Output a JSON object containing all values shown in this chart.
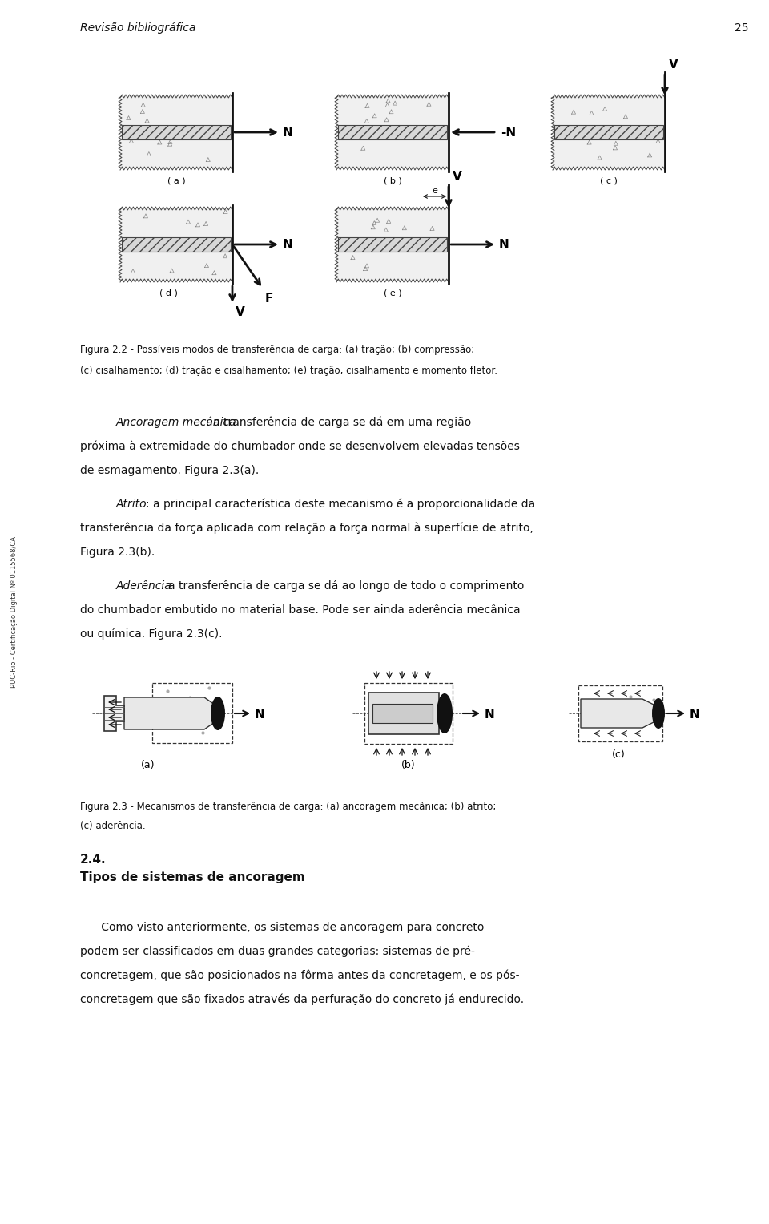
{
  "page_width": 9.6,
  "page_height": 15.27,
  "bg_color": "#ffffff",
  "header_text": "Revisão bibliográfica",
  "header_page": "25",
  "sidebar_text": "PUC-Rio - Certificação Digital Nº 0115568/CA",
  "fig22_caption_line1": "Figura 2.2 - Possíveis modos de transferência de carga: (a) tração; (b) compressão;",
  "fig22_caption_line2": "(c) cisalhamento; (d) tração e cisalhamento; (e) tração, cisalhamento e momento fletor.",
  "para1_italic": "Ancoragem mecânica",
  "para1_rest": ": a transferência de carga se dá em uma região",
  "para1_line2": "próxima à extremidade do chumbador onde se desenvolvem elevadas tensões",
  "para1_line3": "de esmagamento. Figura 2.3(a).",
  "para2_italic": "Atrito",
  "para2_rest": ": a principal característica deste mecanismo é a proporcionalidade da",
  "para2_line2": "transferência da força aplicada com relação a força normal à superfície de atrito,",
  "para2_line3": "Figura 2.3(b).",
  "para3_italic": "Aderência",
  "para3_rest": ": a transferência de carga se dá ao longo de todo o comprimento",
  "para3_line2": "do chumbador embutido no material base. Pode ser ainda aderência mecânica",
  "para3_line3": "ou química. Figura 2.3(c).",
  "fig23_caption_line1": "Figura 2.3 - Mecanismos de transferência de carga: (a) ancoragem mecânica; (b) atrito;",
  "fig23_caption_line2": "(c) aderência.",
  "section_num": "2.4.",
  "section_title": "Tipos de sistemas de ancoragem",
  "body_line1": "      Como visto anteriormente, os sistemas de ancoragem para concreto",
  "body_line2": "podem ser classificados em duas grandes categorias: sistemas de pré-",
  "body_line3": "concretagem, que são posicionados na fôrma antes da concretagem, e os pós-",
  "body_line4": "concretagem que são fixados através da perfuração do concreto já endurecido."
}
